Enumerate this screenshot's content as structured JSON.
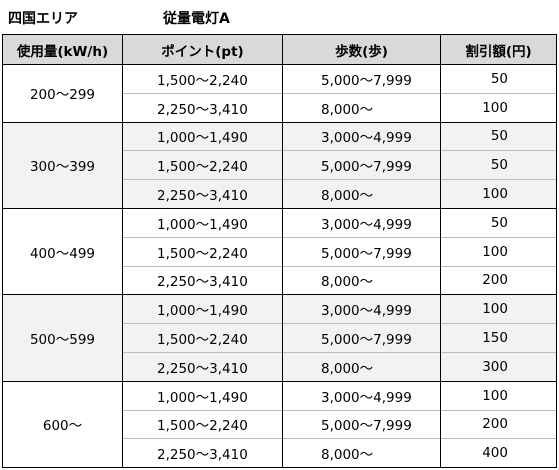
{
  "header": {
    "area": "四国エリア",
    "plan": "従量電灯A"
  },
  "table": {
    "columns": [
      "使用量(kW/h)",
      "ポイント(pt)",
      "歩数(歩)",
      "割引額(円)"
    ],
    "groups": [
      {
        "usage": "200～299",
        "rows": [
          [
            "1,500～2,240",
            "5,000～7,999",
            50
          ],
          [
            "2,250～3,410",
            "8,000～",
            100
          ]
        ]
      },
      {
        "usage": "300～399",
        "rows": [
          [
            "1,000～1,490",
            "3,000～4,999",
            50
          ],
          [
            "1,500～2,240",
            "5,000～7,999",
            50
          ],
          [
            "2,250～3,410",
            "8,000～",
            100
          ]
        ]
      },
      {
        "usage": "400～499",
        "rows": [
          [
            "1,000～1,490",
            "3,000～4,999",
            50
          ],
          [
            "1,500～2,240",
            "5,000～7,999",
            100
          ],
          [
            "2,250～3,410",
            "8,000～",
            200
          ]
        ]
      },
      {
        "usage": "500～599",
        "rows": [
          [
            "1,000～1,490",
            "3,000～4,999",
            100
          ],
          [
            "1,500～2,240",
            "5,000～7,999",
            150
          ],
          [
            "2,250～3,410",
            "8,000～",
            300
          ]
        ]
      },
      {
        "usage": "600～",
        "rows": [
          [
            "1,000～1,490",
            "3,000～4,999",
            100
          ],
          [
            "1,500～2,240",
            "5,000～7,999",
            200
          ],
          [
            "2,250～3,410",
            "8,000～",
            400
          ]
        ]
      }
    ]
  }
}
